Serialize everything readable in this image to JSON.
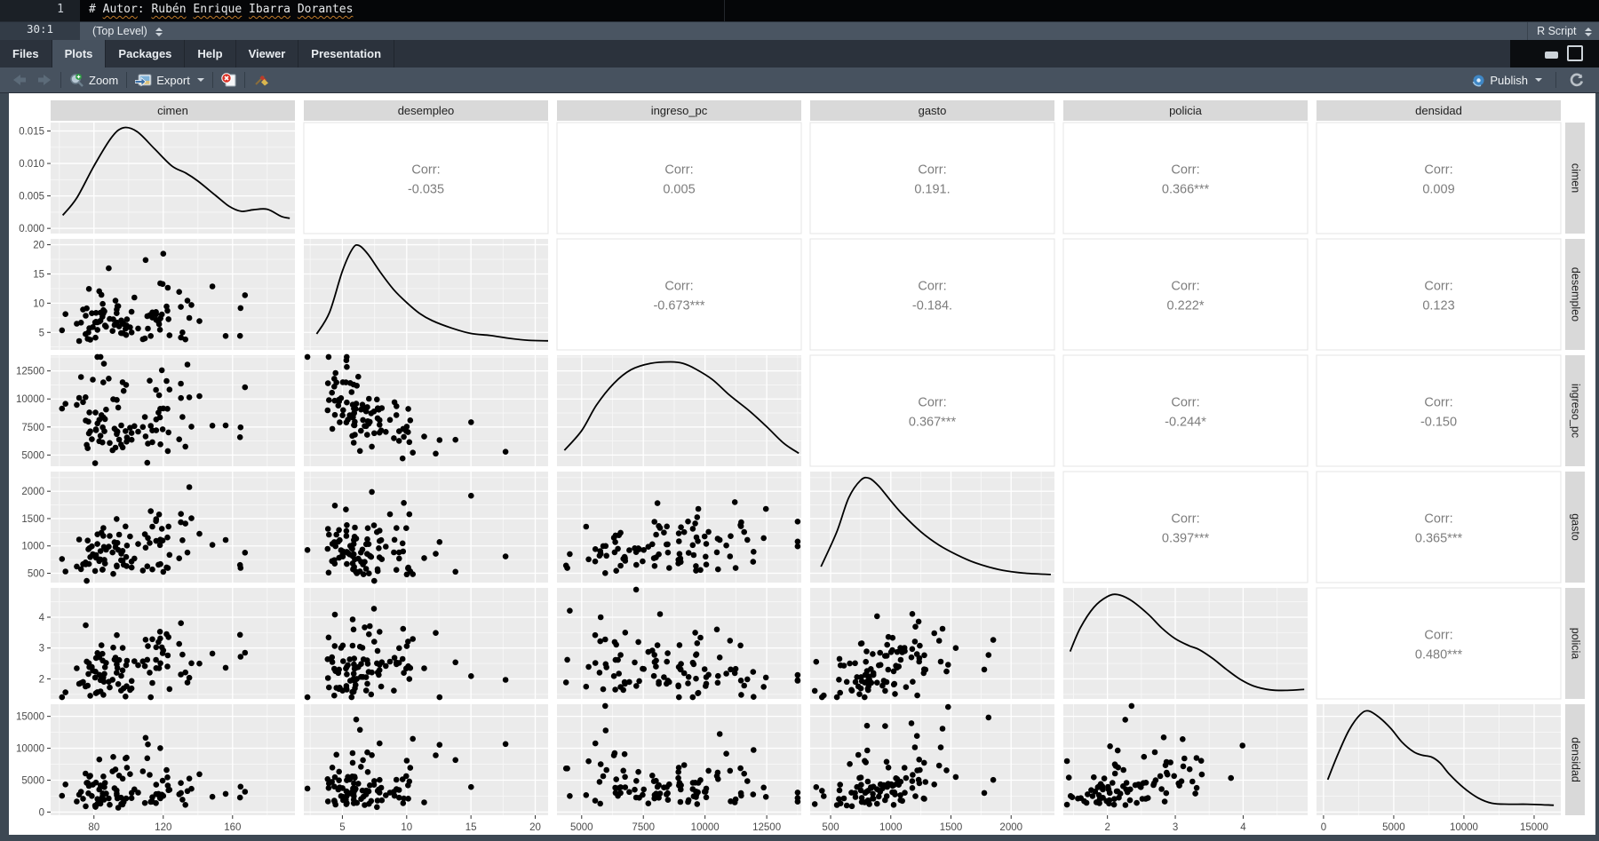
{
  "editor": {
    "line_number": "1",
    "segments": [
      {
        "t": "# ",
        "u": false
      },
      {
        "t": "Autor",
        "u": true
      },
      {
        "t": ": ",
        "u": false
      },
      {
        "t": "Rubén",
        "u": true
      },
      {
        "t": " ",
        "u": false
      },
      {
        "t": "Enrique",
        "u": true
      },
      {
        "t": " ",
        "u": false
      },
      {
        "t": "Ibarra",
        "u": true
      },
      {
        "t": " ",
        "u": false
      },
      {
        "t": "Dorantes",
        "u": true
      }
    ]
  },
  "status_bar": {
    "cursor_position": "30:1",
    "scope": "(Top Level)",
    "file_type": "R Script"
  },
  "tabs": {
    "items": [
      "Files",
      "Plots",
      "Packages",
      "Help",
      "Viewer",
      "Presentation"
    ],
    "active": "Plots"
  },
  "toolbar": {
    "zoom_label": "Zoom",
    "export_label": "Export",
    "publish_label": "Publish"
  },
  "chart_data": {
    "type": "scatterplot-matrix",
    "corr_prefix": "Corr:",
    "n_points": 100,
    "point_color": "#000000",
    "styles": {
      "panel_bg": "#EBEBEB",
      "strip_bg": "#D9D9D9",
      "strip_text": "#1f1f1f",
      "grid_major": "#FFFFFF",
      "grid_minor": "#F7F7F7",
      "corr_text": "#7d7d7d",
      "axis_text": "#4b4b4b",
      "tick_color": "#333333",
      "corr_cell_border": "#E4E4E4",
      "density_line": "#000000"
    },
    "variables": [
      {
        "name": "cimen",
        "domain": [
          55,
          196
        ],
        "ticks": [
          80,
          120,
          160
        ],
        "tick_labels": [
          "80",
          "120",
          "160"
        ],
        "gen": {
          "m": 100,
          "s": 0.22
        },
        "density": {
          "x": [
            62,
            70,
            80,
            90,
            97,
            105,
            115,
            125,
            133,
            140,
            150,
            158,
            165,
            172,
            180,
            188,
            193
          ],
          "y": [
            0.13,
            0.3,
            0.62,
            0.9,
            1.0,
            0.96,
            0.79,
            0.62,
            0.55,
            0.47,
            0.33,
            0.22,
            0.17,
            0.185,
            0.19,
            0.12,
            0.1
          ]
        }
      },
      {
        "name": "desempleo",
        "domain": [
          2,
          21
        ],
        "ticks": [
          5,
          10,
          15,
          20
        ],
        "tick_labels": [
          "5",
          "10",
          "15",
          "20"
        ],
        "gen": {
          "m": 7,
          "s": 0.38
        },
        "density": {
          "x": [
            3,
            4,
            5,
            5.8,
            6.3,
            7,
            8,
            9,
            10,
            11,
            12,
            13.5,
            15,
            16.5,
            18,
            19.5,
            21
          ],
          "y": [
            0.1,
            0.32,
            0.74,
            0.97,
            1.0,
            0.91,
            0.72,
            0.55,
            0.42,
            0.31,
            0.235,
            0.16,
            0.105,
            0.085,
            0.055,
            0.035,
            0.03
          ]
        }
      },
      {
        "name": "ingreso_pc",
        "domain": [
          4000,
          13900
        ],
        "ticks": [
          5000,
          7500,
          10000,
          12500
        ],
        "tick_labels": [
          "5000",
          "7500",
          "10000",
          "12500"
        ],
        "gen": {
          "m": 8200,
          "s": 0.25
        },
        "density": {
          "x": [
            4300,
            5000,
            5600,
            6300,
            7000,
            7800,
            8600,
            9100,
            9600,
            10300,
            11000,
            11800,
            12500,
            13200,
            13800
          ],
          "y": [
            0.1,
            0.3,
            0.56,
            0.78,
            0.92,
            0.985,
            1.0,
            0.985,
            0.93,
            0.82,
            0.66,
            0.5,
            0.34,
            0.17,
            0.07
          ]
        }
      },
      {
        "name": "gasto",
        "domain": [
          330,
          2360
        ],
        "ticks": [
          500,
          1000,
          1500,
          2000
        ],
        "tick_labels": [
          "500",
          "1000",
          "1500",
          "2000"
        ],
        "gen": {
          "m": 900,
          "s": 0.32
        },
        "density": {
          "x": [
            420,
            550,
            650,
            750,
            820,
            900,
            1000,
            1100,
            1250,
            1400,
            1550,
            1700,
            1900,
            2100,
            2330
          ],
          "y": [
            0.1,
            0.45,
            0.8,
            0.98,
            1.0,
            0.92,
            0.77,
            0.63,
            0.455,
            0.32,
            0.22,
            0.14,
            0.07,
            0.035,
            0.02
          ]
        }
      },
      {
        "name": "policia",
        "domain": [
          1.35,
          4.95
        ],
        "ticks": [
          2,
          3,
          4
        ],
        "tick_labels": [
          "2",
          "3",
          "4"
        ],
        "gen": {
          "m": 2.3,
          "s": 0.25
        },
        "density": {
          "x": [
            1.45,
            1.6,
            1.8,
            2.0,
            2.15,
            2.35,
            2.6,
            2.8,
            3.0,
            3.2,
            3.35,
            3.55,
            3.75,
            3.95,
            4.15,
            4.4,
            4.65,
            4.9
          ],
          "y": [
            0.42,
            0.66,
            0.87,
            0.98,
            1.0,
            0.94,
            0.8,
            0.66,
            0.55,
            0.48,
            0.44,
            0.35,
            0.24,
            0.14,
            0.07,
            0.03,
            0.025,
            0.035
          ]
        }
      },
      {
        "name": "densidad",
        "domain": [
          -500,
          16900
        ],
        "ticks": [
          0,
          5000,
          10000,
          15000
        ],
        "tick_labels": [
          "0",
          "5000",
          "10000",
          "15000"
        ],
        "gen": {
          "m": 3800,
          "s": 0.6
        },
        "density": {
          "x": [
            300,
            1000,
            1800,
            2600,
            3200,
            4000,
            4800,
            5600,
            6400,
            7000,
            7700,
            8300,
            9000,
            10000,
            11000,
            12000,
            13200,
            14500,
            16400
          ],
          "y": [
            0.3,
            0.55,
            0.8,
            0.96,
            1.0,
            0.93,
            0.82,
            0.68,
            0.585,
            0.55,
            0.53,
            0.47,
            0.35,
            0.215,
            0.115,
            0.06,
            0.05,
            0.05,
            0.04
          ]
        }
      }
    ],
    "diag_axis": {
      "min": -0.0008,
      "max": 0.0163,
      "ticks": [
        0,
        0.005,
        0.01,
        0.015
      ],
      "labels": [
        "0.000",
        "0.005",
        "0.010",
        "0.015"
      ],
      "peak_value": 0.0155
    },
    "pairs": [
      {
        "x": "cimen",
        "y": "desempleo",
        "r": -0.035,
        "label": "-0.035"
      },
      {
        "x": "cimen",
        "y": "ingreso_pc",
        "r": 0.005,
        "label": "0.005"
      },
      {
        "x": "cimen",
        "y": "gasto",
        "r": 0.191,
        "label": "0.191."
      },
      {
        "x": "cimen",
        "y": "policia",
        "r": 0.366,
        "label": "0.366***"
      },
      {
        "x": "cimen",
        "y": "densidad",
        "r": 0.009,
        "label": "0.009"
      },
      {
        "x": "desempleo",
        "y": "ingreso_pc",
        "r": -0.673,
        "label": "-0.673***"
      },
      {
        "x": "desempleo",
        "y": "gasto",
        "r": -0.184,
        "label": "-0.184."
      },
      {
        "x": "desempleo",
        "y": "policia",
        "r": 0.222,
        "label": "0.222*"
      },
      {
        "x": "desempleo",
        "y": "densidad",
        "r": 0.123,
        "label": "0.123"
      },
      {
        "x": "ingreso_pc",
        "y": "gasto",
        "r": 0.367,
        "label": "0.367***"
      },
      {
        "x": "ingreso_pc",
        "y": "policia",
        "r": -0.244,
        "label": "-0.244*"
      },
      {
        "x": "ingreso_pc",
        "y": "densidad",
        "r": -0.15,
        "label": "-0.150"
      },
      {
        "x": "gasto",
        "y": "policia",
        "r": 0.397,
        "label": "0.397***"
      },
      {
        "x": "gasto",
        "y": "densidad",
        "r": 0.365,
        "label": "0.365***"
      },
      {
        "x": "policia",
        "y": "densidad",
        "r": 0.48,
        "label": "0.480***"
      }
    ]
  }
}
